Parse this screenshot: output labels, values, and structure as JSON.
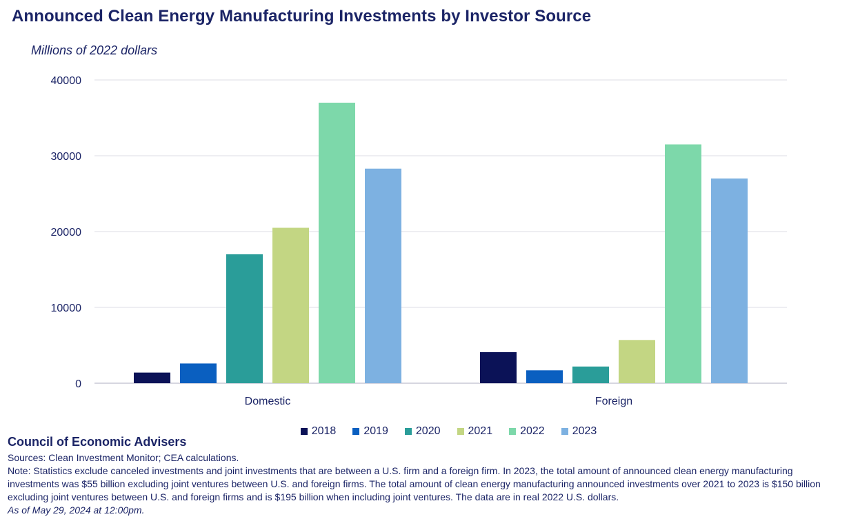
{
  "title": "Announced Clean Energy Manufacturing Investments by Investor Source",
  "subtitle": "Millions of 2022 dollars",
  "footer": {
    "org": "Council of Economic Advisers",
    "sources": "Sources: Clean Investment Monitor; CEA calculations.",
    "note": "Note: Statistics exclude canceled investments and joint investments that are between a U.S. firm and a foreign firm. In 2023, the total amount of announced clean energy manufacturing investments was $55 billion excluding joint ventures between U.S. and foreign firms. The total amount of clean energy manufacturing announced investments over 2021 to 2023 is $150 billion excluding joint ventures between U.S. and foreign firms and is $195 billion when including joint ventures. The data are in real 2022 U.S. dollars.",
    "as_of": "As of May 29, 2024 at 12:00pm."
  },
  "chart_data": {
    "type": "bar",
    "title": "Announced Clean Energy Manufacturing Investments by Investor Source",
    "ylabel": "Millions of 2022 dollars",
    "categories": [
      "Domestic",
      "Foreign"
    ],
    "ylim": [
      0,
      40000
    ],
    "yticks": [
      "0",
      "10000",
      "20000",
      "30000",
      "40000"
    ],
    "grid": true,
    "legend_position": "bottom",
    "series": [
      {
        "name": "2018",
        "color": "#0b1257",
        "values": [
          1400,
          4100
        ]
      },
      {
        "name": "2019",
        "color": "#0a5fc0",
        "values": [
          2600,
          1700
        ]
      },
      {
        "name": "2020",
        "color": "#2a9d99",
        "values": [
          17000,
          2200
        ]
      },
      {
        "name": "2021",
        "color": "#c3d683",
        "values": [
          20500,
          5700
        ]
      },
      {
        "name": "2022",
        "color": "#7dd8aa",
        "values": [
          37000,
          31500
        ]
      },
      {
        "name": "2023",
        "color": "#7db1e1",
        "values": [
          28300,
          27000
        ]
      }
    ]
  }
}
